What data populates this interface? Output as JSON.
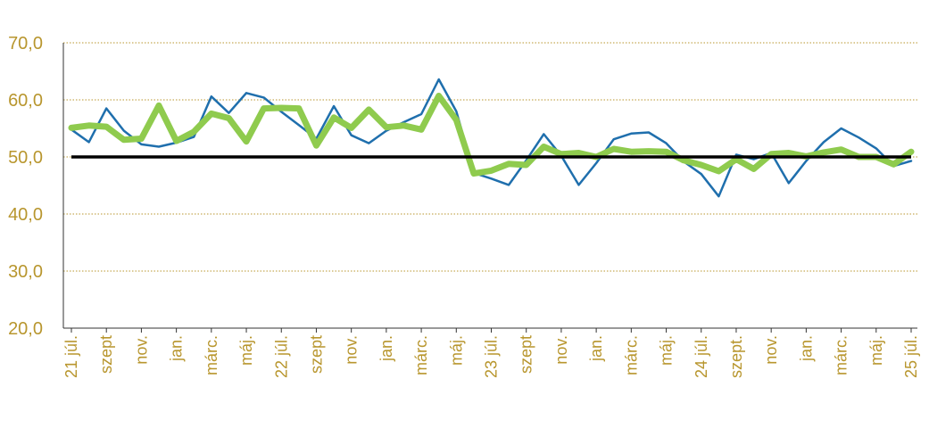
{
  "chart_data": {
    "type": "line",
    "title": "",
    "xlabel": "",
    "ylabel": "",
    "ylim": [
      20,
      70
    ],
    "y_ticks": [
      "20,0",
      "30,0",
      "40,0",
      "50,0",
      "60,0",
      "70,0"
    ],
    "x_tick_labels": [
      "21 júl.",
      "szept",
      "nov.",
      "jan.",
      "márc.",
      "máj.",
      "22 júl.",
      "szept",
      "nov.",
      "jan.",
      "márc.",
      "máj.",
      "23 júl.",
      "szept",
      "nov.",
      "jan.",
      "márc.",
      "máj.",
      "24 júl.",
      "szept.",
      "nov.",
      "jan.",
      "márc.",
      "máj.",
      "25 júl."
    ],
    "grid": "horizontal dotted",
    "reference_line": {
      "y": 50,
      "color": "#000000"
    },
    "series": [
      {
        "color": "#1f6fad",
        "values": [
          54.8,
          52.6,
          58.5,
          54.6,
          52.2,
          51.8,
          52.5,
          53.5,
          60.6,
          57.7,
          61.2,
          60.4,
          57.9,
          55.6,
          53.2,
          58.9,
          53.8,
          52.4,
          54.6,
          56.1,
          57.5,
          63.6,
          58.0,
          47.2,
          46.2,
          45.1,
          49.4,
          54.0,
          50.2,
          45.1,
          48.9,
          53.1,
          54.1,
          54.3,
          52.4,
          49.2,
          47.0,
          43.1,
          50.4,
          49.6,
          50.7,
          45.4,
          49.3,
          52.6,
          55.0,
          53.4,
          51.5,
          48.4,
          49.3
        ]
      },
      {
        "color": "#8fcb4e",
        "values": [
          55.1,
          55.5,
          55.3,
          53.0,
          53.2,
          59.0,
          52.8,
          54.4,
          57.6,
          56.8,
          52.7,
          58.5,
          58.6,
          58.5,
          52.0,
          56.9,
          55.1,
          58.3,
          55.2,
          55.5,
          54.8,
          60.7,
          56.5,
          47.1,
          47.6,
          48.8,
          48.6,
          51.8,
          50.5,
          50.7,
          50.0,
          51.4,
          50.9,
          51.0,
          50.9,
          49.4,
          48.6,
          47.5,
          49.6,
          47.9,
          50.5,
          50.7,
          50.1,
          50.8,
          51.3,
          50.0,
          50.0,
          48.7,
          50.9
        ]
      }
    ]
  },
  "colors": {
    "tick": "#b8962e",
    "grid": "#b8962e",
    "axis": "#333333"
  }
}
